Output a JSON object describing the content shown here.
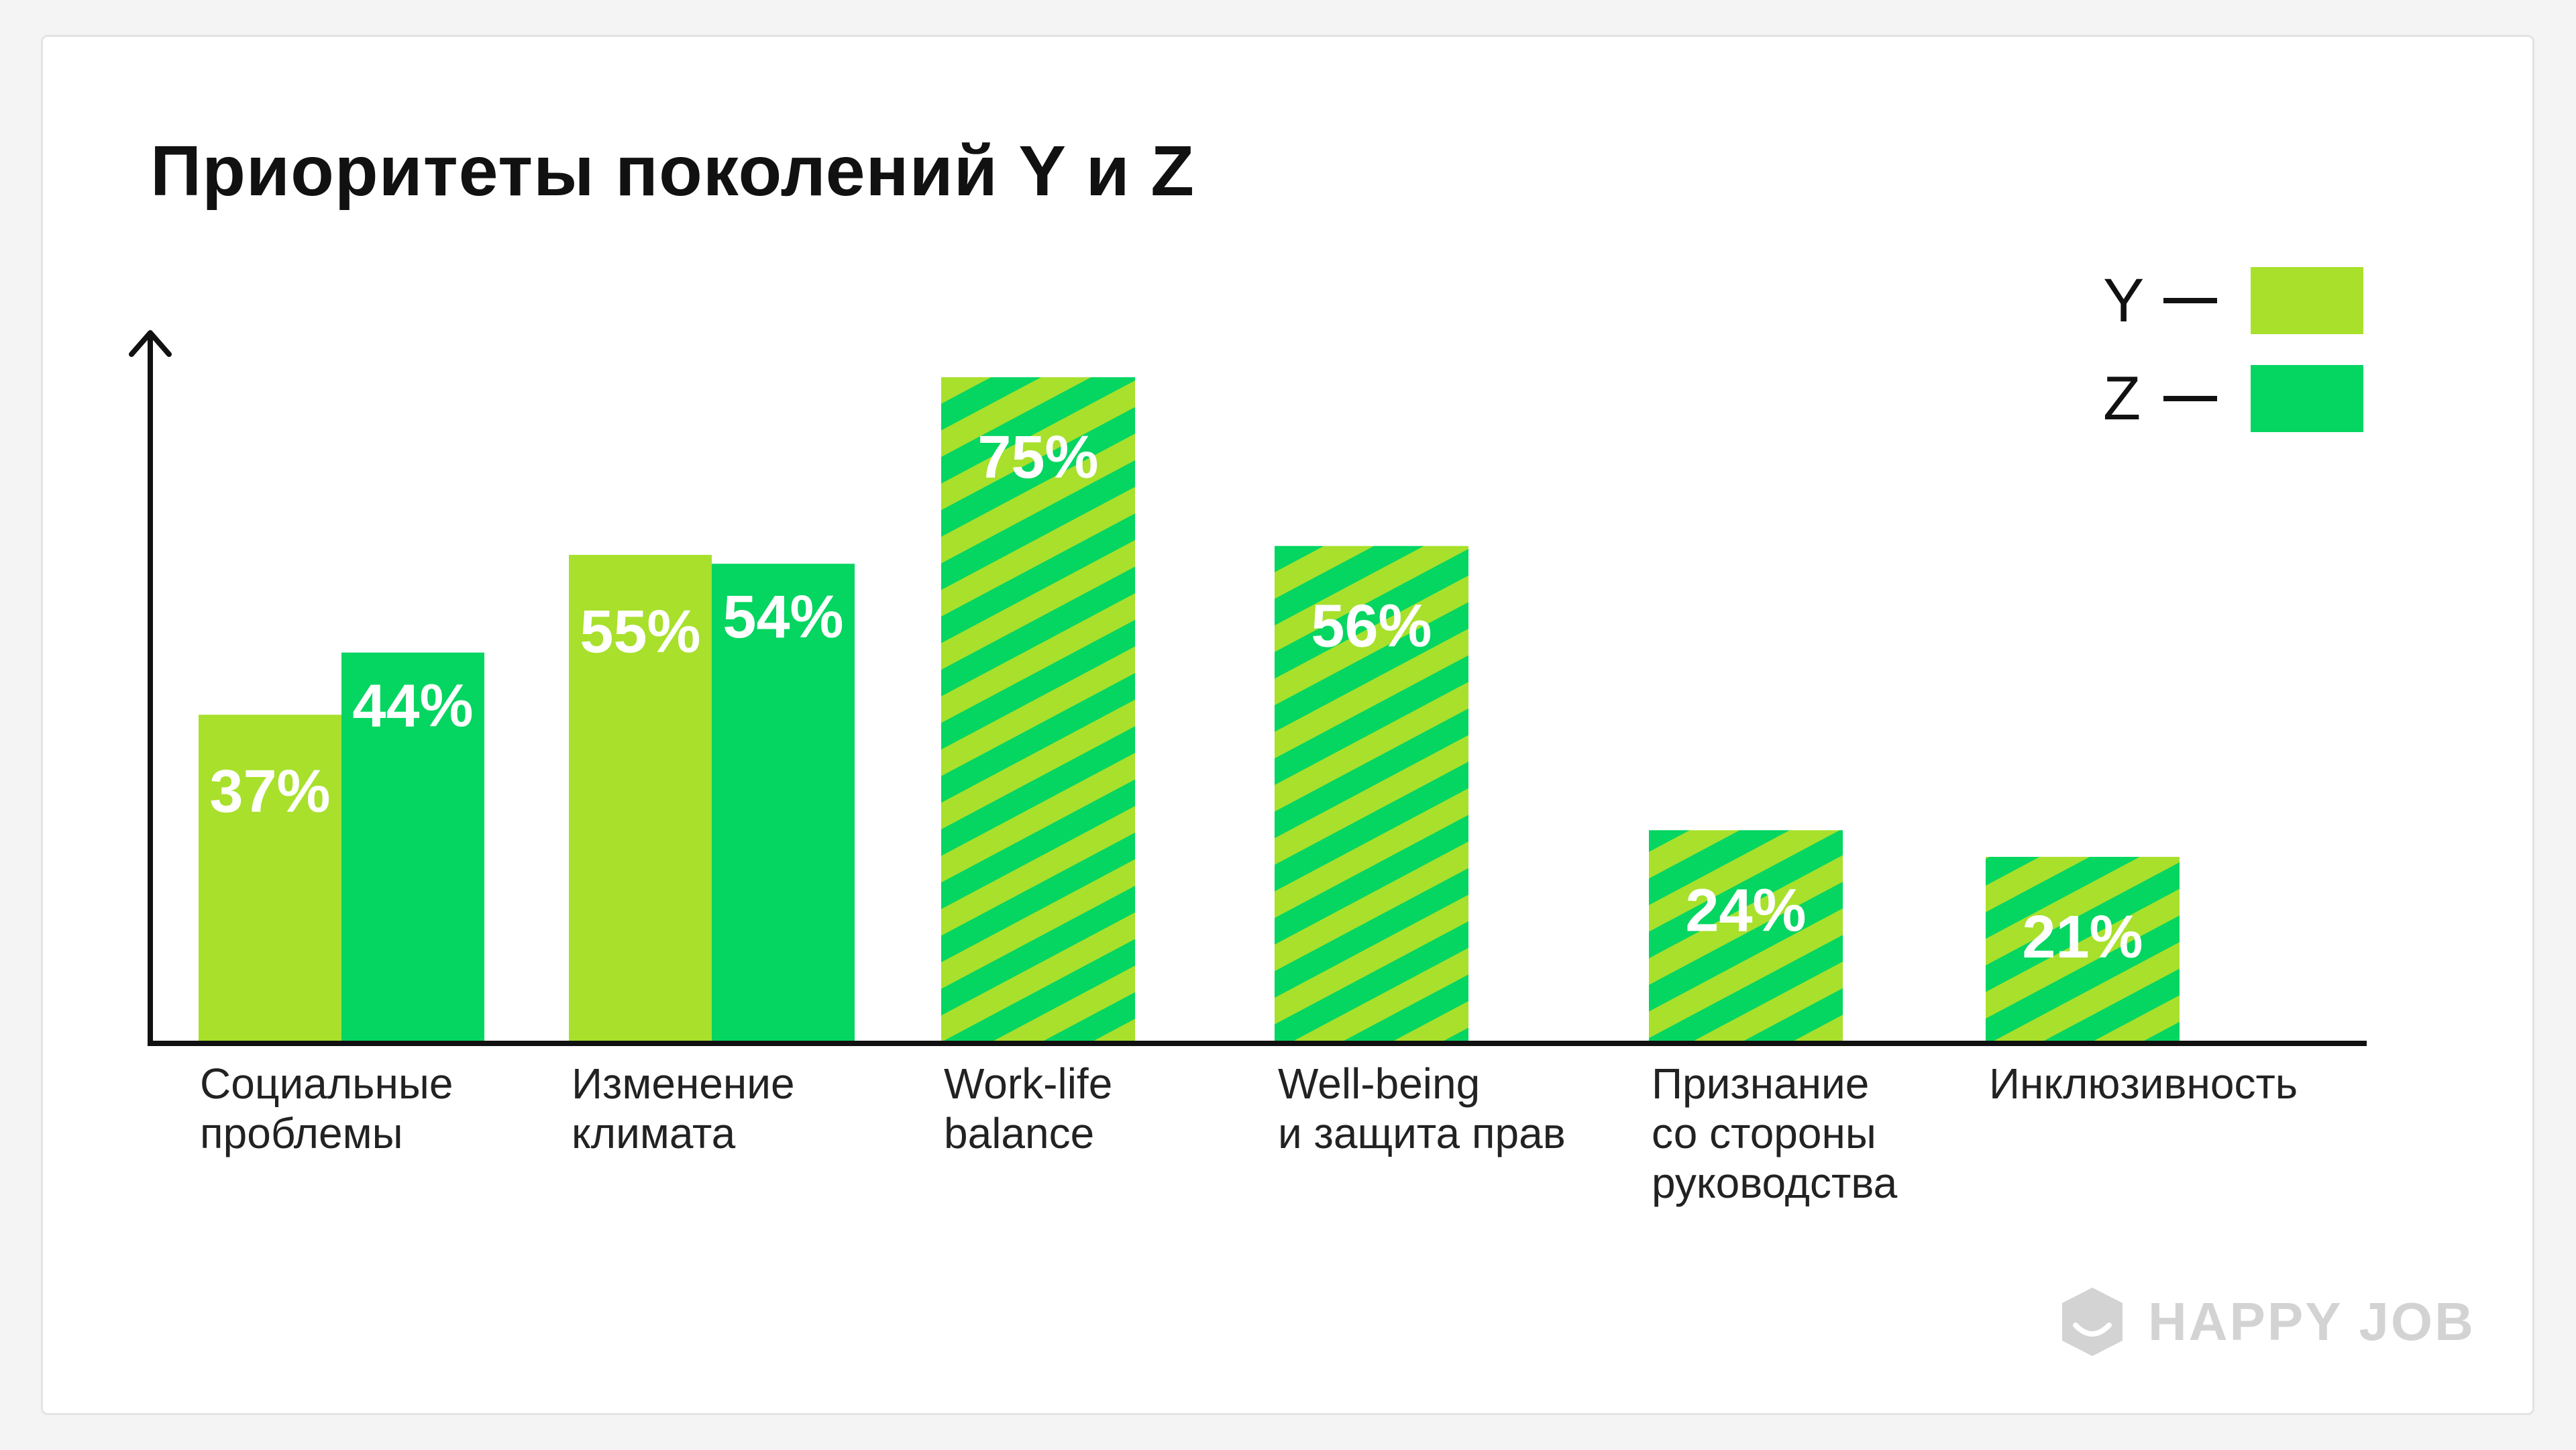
{
  "colors": {
    "y": "#a8e02c",
    "z": "#05d561",
    "axis": "#111111",
    "label": "#ffffff",
    "brand": "#d3d3d3"
  },
  "chart_data": {
    "type": "bar",
    "title": "Приоритеты поколений Y и Z",
    "xlabel": "",
    "ylabel": "",
    "ylim": [
      0,
      80
    ],
    "grid": false,
    "legend": {
      "placement": "top-right",
      "entries": [
        {
          "name": "Y",
          "dash": "—"
        },
        {
          "name": "Z",
          "dash": "—"
        }
      ]
    },
    "categories": [
      "Социальные\nпроблемы",
      "Изменение\nклимата",
      "Work-life\nbalance",
      "Well-being\nи защита прав",
      "Признание\nсо стороны\nруководства",
      "Инклюзивность"
    ],
    "series": [
      {
        "name": "Y",
        "values": [
          37,
          55,
          null,
          null,
          null,
          null
        ]
      },
      {
        "name": "Z",
        "values": [
          44,
          54,
          null,
          null,
          null,
          null
        ]
      },
      {
        "name": "Y и Z",
        "values": [
          null,
          null,
          75,
          56,
          24,
          21
        ]
      }
    ],
    "data_labels": [
      {
        "category": 0,
        "series": "Y",
        "text": "37%"
      },
      {
        "category": 0,
        "series": "Z",
        "text": "44%"
      },
      {
        "category": 1,
        "series": "Y",
        "text": "55%"
      },
      {
        "category": 1,
        "series": "Z",
        "text": "54%"
      },
      {
        "category": 2,
        "series": "Y и Z",
        "text": "75%"
      },
      {
        "category": 3,
        "series": "Y и Z",
        "text": "56%"
      },
      {
        "category": 4,
        "series": "Y и Z",
        "text": "24%"
      },
      {
        "category": 5,
        "series": "Y и Z",
        "text": "21%"
      }
    ]
  },
  "brand": {
    "name": "HAPPY JOB",
    "icon": "smiley-hexagon-icon"
  }
}
